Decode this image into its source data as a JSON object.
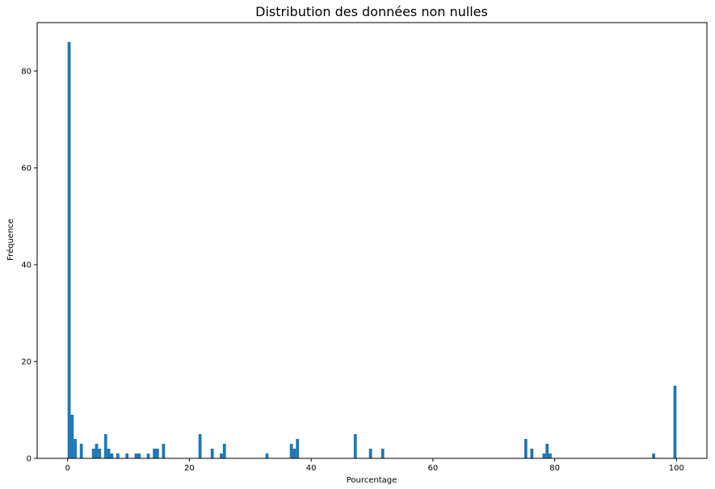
{
  "chart_data": {
    "type": "bar",
    "title": "Distribution des données non nulles",
    "xlabel": "Pourcentage",
    "ylabel": "Fréquence",
    "xlim": [
      -5,
      105
    ],
    "ylim": [
      0,
      90
    ],
    "xticks": [
      0,
      20,
      40,
      60,
      80,
      100
    ],
    "yticks": [
      0,
      20,
      40,
      60,
      80
    ],
    "bin_width": 0.5,
    "grid": false,
    "legend": "none",
    "bar_color": "#1f77b4",
    "bins": [
      {
        "x": 0.0,
        "count": 86
      },
      {
        "x": 0.5,
        "count": 9
      },
      {
        "x": 1.0,
        "count": 4
      },
      {
        "x": 2.0,
        "count": 3
      },
      {
        "x": 4.0,
        "count": 2
      },
      {
        "x": 4.5,
        "count": 3
      },
      {
        "x": 5.0,
        "count": 2
      },
      {
        "x": 6.0,
        "count": 5
      },
      {
        "x": 6.5,
        "count": 2
      },
      {
        "x": 7.0,
        "count": 1
      },
      {
        "x": 8.0,
        "count": 1
      },
      {
        "x": 9.5,
        "count": 1
      },
      {
        "x": 11.0,
        "count": 1
      },
      {
        "x": 11.5,
        "count": 1
      },
      {
        "x": 13.0,
        "count": 1
      },
      {
        "x": 14.0,
        "count": 2
      },
      {
        "x": 14.5,
        "count": 2
      },
      {
        "x": 15.5,
        "count": 3
      },
      {
        "x": 21.5,
        "count": 5
      },
      {
        "x": 23.5,
        "count": 2
      },
      {
        "x": 25.0,
        "count": 1
      },
      {
        "x": 25.5,
        "count": 3
      },
      {
        "x": 32.5,
        "count": 1
      },
      {
        "x": 36.5,
        "count": 3
      },
      {
        "x": 37.0,
        "count": 2
      },
      {
        "x": 37.5,
        "count": 4
      },
      {
        "x": 47.0,
        "count": 5
      },
      {
        "x": 49.5,
        "count": 2
      },
      {
        "x": 51.5,
        "count": 2
      },
      {
        "x": 75.0,
        "count": 4
      },
      {
        "x": 76.0,
        "count": 2
      },
      {
        "x": 78.0,
        "count": 1
      },
      {
        "x": 78.5,
        "count": 3
      },
      {
        "x": 79.0,
        "count": 1
      },
      {
        "x": 96.0,
        "count": 1
      },
      {
        "x": 99.5,
        "count": 15
      }
    ]
  }
}
